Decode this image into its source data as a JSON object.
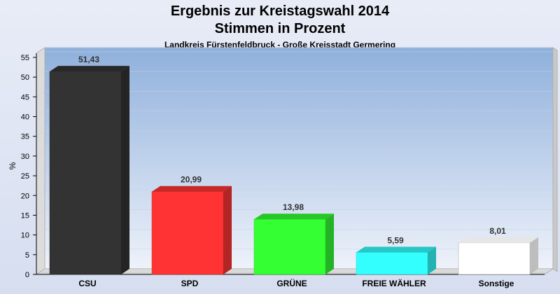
{
  "chart_data": {
    "type": "bar",
    "title_line1": "Ergebnis zur Kreistagswahl 2014",
    "title_line2": "Stimmen in Prozent",
    "subtitle": "Landkreis Fürstenfeldbruck - Große Kreisstadt Germering",
    "ylabel": "%",
    "xlabel": "",
    "ylim": [
      0,
      55
    ],
    "yticks": [
      0,
      5,
      10,
      15,
      20,
      25,
      30,
      35,
      40,
      45,
      50,
      55
    ],
    "grid": true,
    "categories": [
      "CSU",
      "SPD",
      "GRÜNE",
      "FREIE WÄHLER",
      "Sonstige"
    ],
    "values": [
      51.43,
      20.99,
      13.98,
      5.59,
      8.01
    ],
    "value_labels": [
      "51,43",
      "20,99",
      "13,98",
      "5,59",
      "8,01"
    ],
    "colors": [
      "#333333",
      "#ff3333",
      "#33ff33",
      "#33ffff",
      "#ffffff"
    ]
  }
}
